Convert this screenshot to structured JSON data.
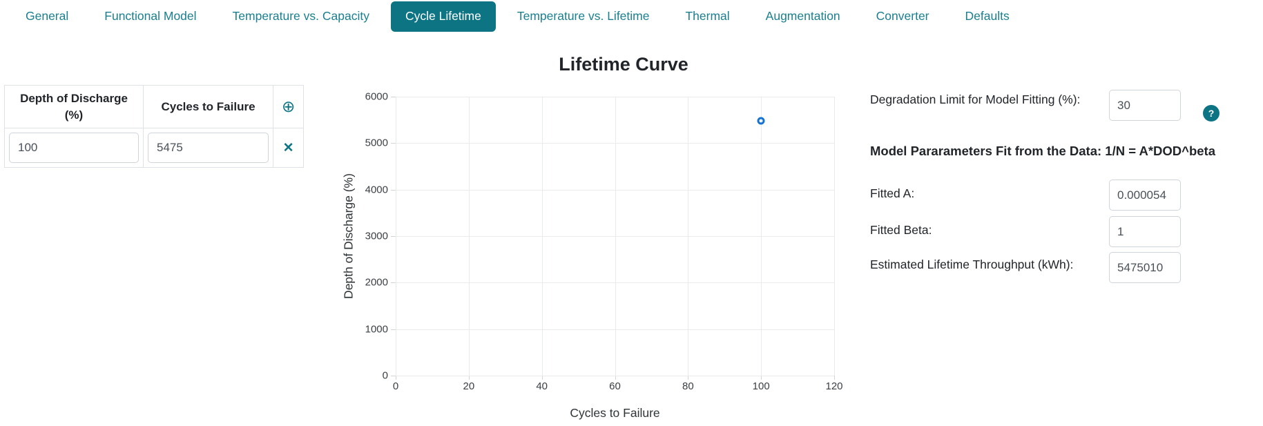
{
  "colors": {
    "accent": "#0D7484",
    "tab_text": "#1A7F8E",
    "marker_blue": "#1673D1",
    "grid": "#e9eaec"
  },
  "tabs": {
    "items": [
      {
        "label": "General",
        "active": false
      },
      {
        "label": "Functional Model",
        "active": false
      },
      {
        "label": "Temperature vs. Capacity",
        "active": false
      },
      {
        "label": "Cycle Lifetime",
        "active": true
      },
      {
        "label": "Temperature vs. Lifetime",
        "active": false
      },
      {
        "label": "Thermal",
        "active": false
      },
      {
        "label": "Augmentation",
        "active": false
      },
      {
        "label": "Converter",
        "active": false
      },
      {
        "label": "Defaults",
        "active": false
      }
    ]
  },
  "table": {
    "headers": [
      "Depth of Discharge (%)",
      "Cycles to Failure"
    ],
    "add_icon": "⊕",
    "rows": [
      {
        "dod": "100",
        "cycles": "5475",
        "remove_icon": "✕"
      }
    ]
  },
  "chart_data": {
    "type": "scatter",
    "title": "Lifetime Curve",
    "xlabel": "Cycles to Failure",
    "ylabel": "Depth of Discharge (%)",
    "xlim": [
      0,
      120
    ],
    "ylim": [
      0,
      6000
    ],
    "xticks": [
      0,
      20,
      40,
      60,
      80,
      100,
      120
    ],
    "yticks": [
      0,
      1000,
      2000,
      3000,
      4000,
      5000,
      6000
    ],
    "grid": true,
    "legend_position": "none",
    "marker": {
      "shape": "open-circle",
      "color": "#1673D1"
    },
    "points": [
      {
        "x": 100,
        "y": 5475
      }
    ]
  },
  "right_panel": {
    "degradation_label": "Degradation Limit for Model Fitting (%):",
    "degradation_value": "30",
    "help_icon": "?",
    "model_heading": "Model Pararameters Fit from the Data: 1/N = A*DOD^beta",
    "fields": [
      {
        "label": "Fitted A:",
        "value": "0.000054"
      },
      {
        "label": "Fitted Beta:",
        "value": "1"
      },
      {
        "label": "Estimated Lifetime Throughput (kWh):",
        "value": "5475010"
      }
    ]
  }
}
